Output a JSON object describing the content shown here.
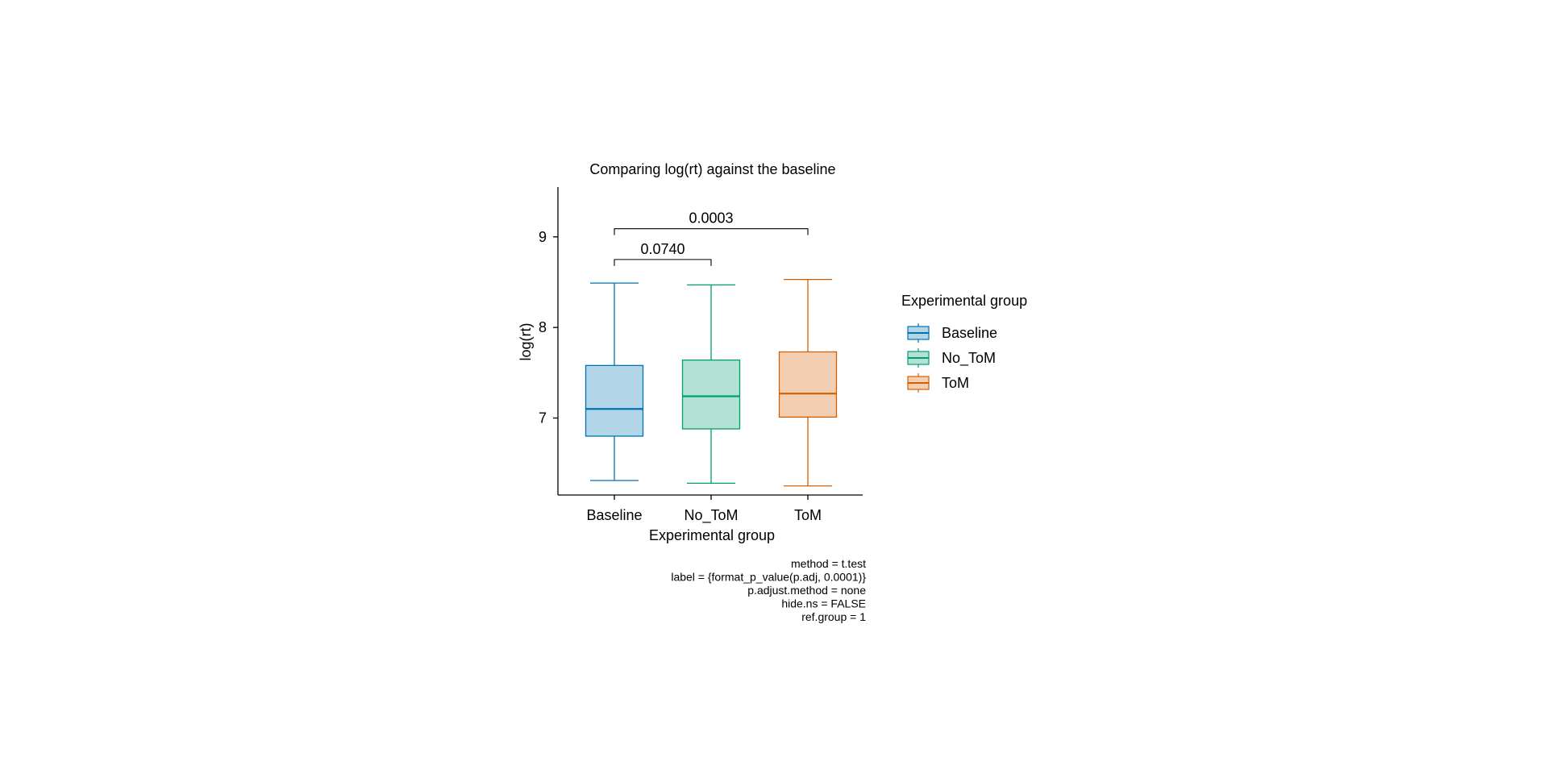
{
  "chart_data": {
    "type": "box",
    "title": "Comparing log(rt) against the baseline",
    "xlabel": "Experimental group",
    "ylabel": "log(rt)",
    "categories": [
      "Baseline",
      "No_ToM",
      "ToM"
    ],
    "ylim": [
      6.15,
      9.55
    ],
    "yticks": [
      7,
      8,
      9
    ],
    "grid": false,
    "legend": {
      "title": "Experimental group",
      "placement": "right",
      "entries": [
        "Baseline",
        "No_ToM",
        "ToM"
      ]
    },
    "series": [
      {
        "name": "Baseline",
        "color": "#0072B2",
        "fill": "#b3d5e8",
        "whisker_low": 6.31,
        "q1": 6.8,
        "median": 7.1,
        "q3": 7.58,
        "whisker_high": 8.49
      },
      {
        "name": "No_ToM",
        "color": "#009E73",
        "fill": "#b3e2d5",
        "whisker_low": 6.28,
        "q1": 6.88,
        "median": 7.24,
        "q3": 7.64,
        "whisker_high": 8.47
      },
      {
        "name": "ToM",
        "color": "#D55E00",
        "fill": "#f2cfb3",
        "whisker_low": 6.25,
        "q1": 7.01,
        "median": 7.27,
        "q3": 7.73,
        "whisker_high": 8.53
      }
    ],
    "comparisons": [
      {
        "group1": "Baseline",
        "group2": "No_ToM",
        "label": "0.0740",
        "y": 8.75
      },
      {
        "group1": "Baseline",
        "group2": "ToM",
        "label": "0.0003",
        "y": 9.09
      }
    ],
    "caption": [
      "method = t.test",
      "label = {format_p_value(p.adj, 0.0001)}",
      "p.adjust.method = none",
      "hide.ns = FALSE",
      "ref.group = 1"
    ]
  }
}
